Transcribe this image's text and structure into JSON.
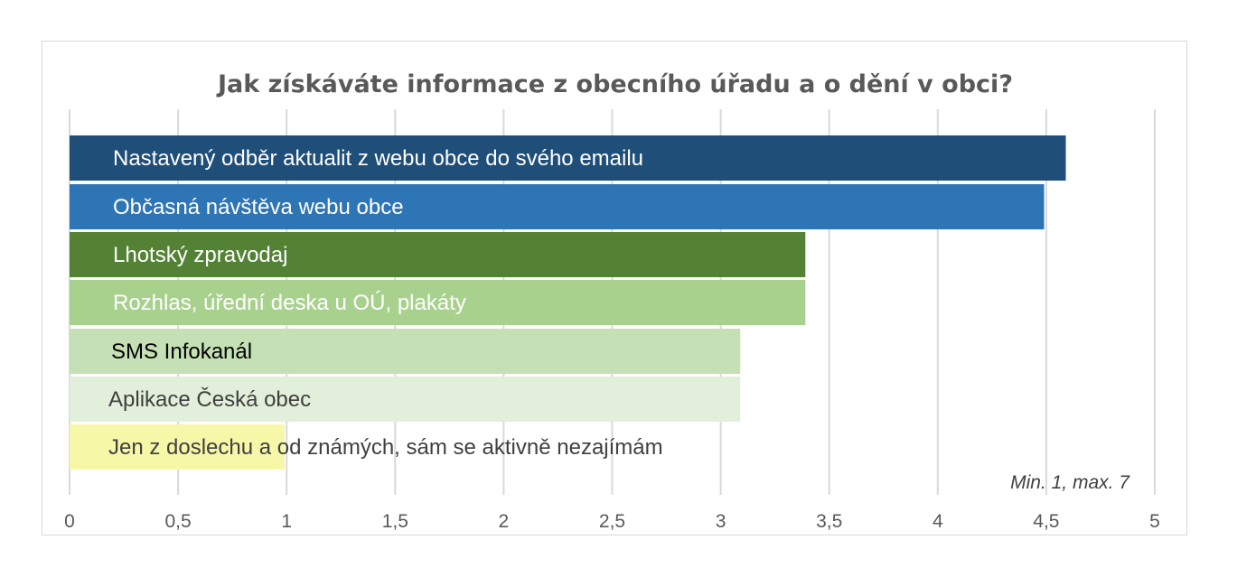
{
  "chart_data": {
    "type": "bar",
    "orientation": "horizontal",
    "title": "Jak získáváte informace z obecního úřadu a o dění v obci?",
    "xlabel": "",
    "ylabel": "",
    "xlim": [
      0,
      5
    ],
    "x_ticks": [
      0,
      0.5,
      1,
      1.5,
      2,
      2.5,
      3,
      3.5,
      4,
      4.5,
      5
    ],
    "x_tick_labels": [
      "0",
      "0,5",
      "1",
      "1,5",
      "2",
      "2,5",
      "3",
      "3,5",
      "4",
      "4,5",
      "5"
    ],
    "grid": true,
    "note": "Min.  1, max. 7",
    "categories": [
      "Nastavený odběr aktualit z webu obce do svého emailu",
      "Občasná návštěva webu obce",
      "Lhotský zpravodaj",
      "Rozhlas, úřední deska u OÚ, plakáty",
      "SMS Infokanál",
      "Aplikace Česká obec",
      "Jen z doslechu a od známých, sám se aktivně nezajímám"
    ],
    "values": [
      4.59,
      4.49,
      3.39,
      3.39,
      3.09,
      3.09,
      0.99
    ],
    "colors": [
      "#1f4e79",
      "#2e75b6",
      "#548235",
      "#a9d18e",
      "#c5e0b4",
      "#e2efda",
      "#f7f7a8"
    ],
    "label_colors": [
      "#ffffff",
      "#ffffff",
      "#ffffff",
      "#ffffff",
      "#000000",
      "#404040",
      "#404040"
    ]
  }
}
